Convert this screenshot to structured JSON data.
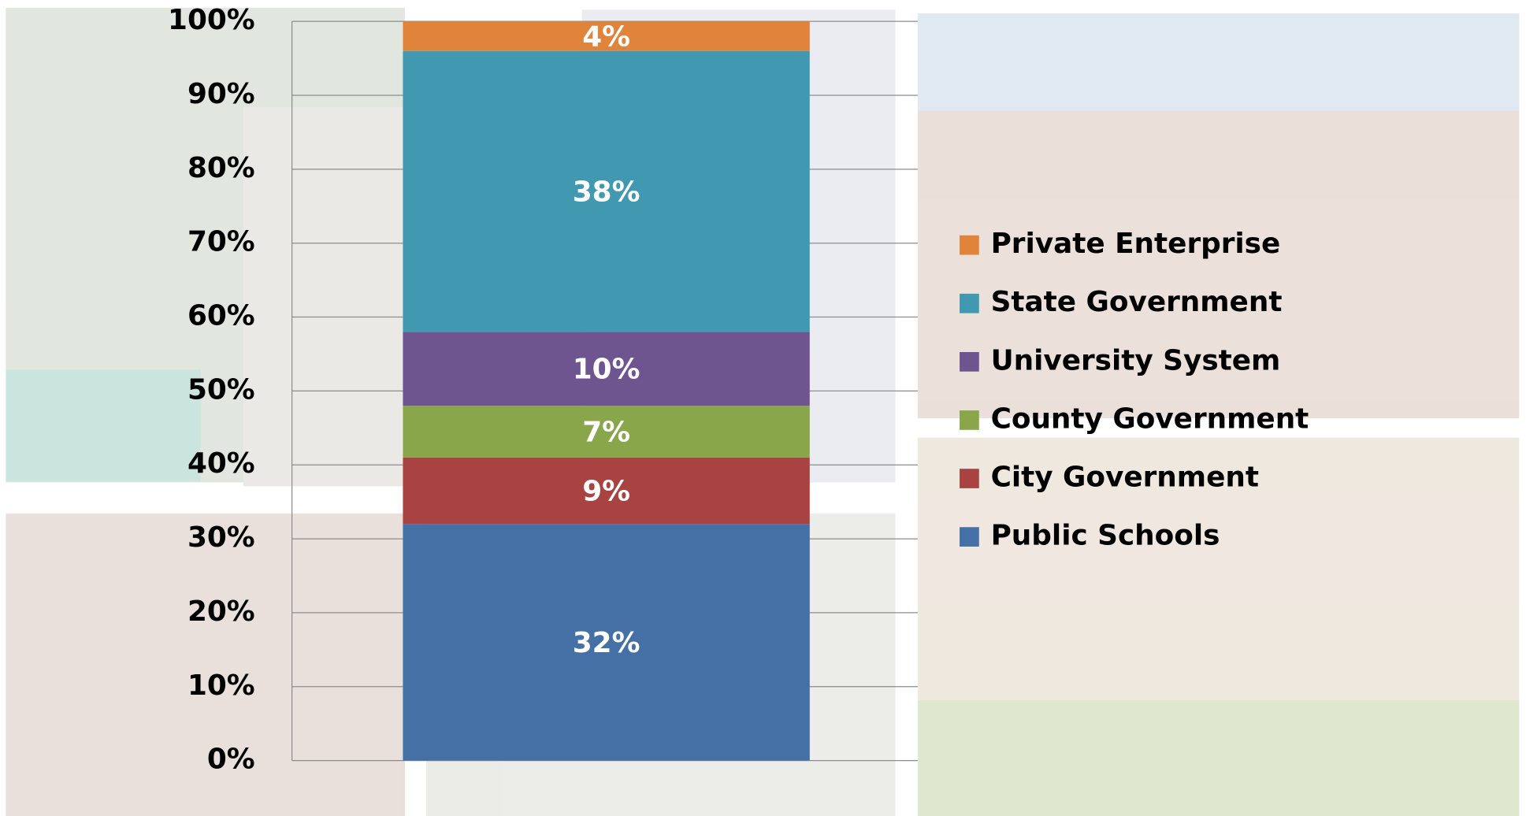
{
  "chart_data": {
    "type": "stacked-bar",
    "categories": [
      null
    ],
    "series": [
      {
        "name": "Public Schools",
        "color": "#4470a5",
        "values": [
          32
        ],
        "value_labels": [
          "32%"
        ]
      },
      {
        "name": "City Government",
        "color": "#a84341",
        "values": [
          9
        ],
        "value_labels": [
          "9%"
        ]
      },
      {
        "name": "County Government",
        "color": "#8aa64b",
        "values": [
          7
        ],
        "value_labels": [
          "7%"
        ]
      },
      {
        "name": "University System",
        "color": "#6e5590",
        "values": [
          10
        ],
        "value_labels": [
          "10%"
        ]
      },
      {
        "name": "State Government",
        "color": "#4099b1",
        "values": [
          38
        ],
        "value_labels": [
          "38%"
        ]
      },
      {
        "name": "Private Enterprise",
        "color": "#e0843b",
        "values": [
          4
        ],
        "value_labels": [
          "4%"
        ]
      }
    ],
    "ylim": [
      0,
      100
    ],
    "yticks": [
      {
        "value": 0,
        "label": "0%"
      },
      {
        "value": 10,
        "label": "10%"
      },
      {
        "value": 20,
        "label": "20%"
      },
      {
        "value": 30,
        "label": "30%"
      },
      {
        "value": 40,
        "label": "40%"
      },
      {
        "value": 50,
        "label": "50%"
      },
      {
        "value": 60,
        "label": "60%"
      },
      {
        "value": 70,
        "label": "70%"
      },
      {
        "value": 80,
        "label": "80%"
      },
      {
        "value": 90,
        "label": "90%"
      },
      {
        "value": 100,
        "label": "100%"
      }
    ],
    "grid": true,
    "legend": "right"
  }
}
